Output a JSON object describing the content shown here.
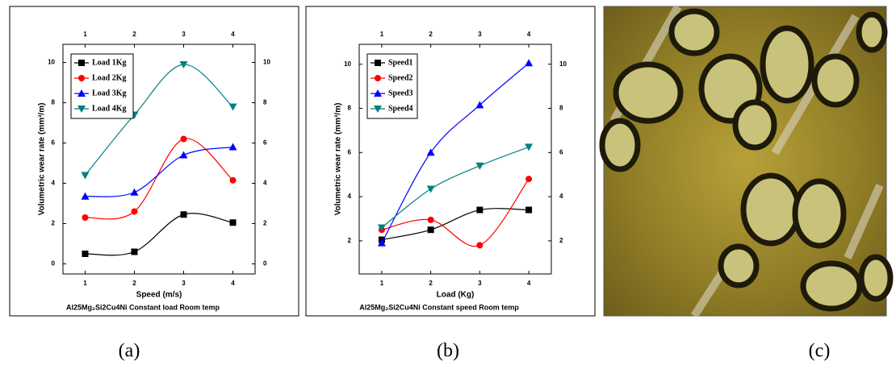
{
  "chart_data": [
    {
      "type": "line",
      "panel_label": "(a)",
      "title": "Al25Mg₂Si2Cu4Ni Constant load Room temp",
      "x_label": "Speed (m/s)",
      "y_label": "Volumetric wear rate (mm³/m)",
      "x": [
        1,
        2,
        3,
        4
      ],
      "xlim": [
        0.55,
        4.45
      ],
      "xticks": [
        1,
        2,
        3,
        4
      ],
      "ylim": [
        -0.5,
        10.9
      ],
      "yticks": [
        0,
        2,
        4,
        6,
        8,
        10
      ],
      "legend": "upper left",
      "smooth": true,
      "series": [
        {
          "name": "Load 1Kg",
          "color": "#000000",
          "marker": "square",
          "values": [
            0.5,
            0.6,
            2.45,
            2.05
          ]
        },
        {
          "name": "Load 2Kg",
          "color": "#ff0000",
          "marker": "circle",
          "values": [
            2.3,
            2.6,
            6.2,
            4.15
          ]
        },
        {
          "name": "Load 3Kg",
          "color": "#0000ff",
          "marker": "triangle-up",
          "values": [
            3.35,
            3.55,
            5.4,
            5.8
          ]
        },
        {
          "name": "Load 4Kg",
          "color": "#008080",
          "marker": "triangle-down",
          "values": [
            4.4,
            7.4,
            9.9,
            7.8
          ]
        }
      ]
    },
    {
      "type": "line",
      "panel_label": "(b)",
      "title": "Al25Mg₂Si2Cu4Ni Constant speed Room temp",
      "x_label": "Load (Kg)",
      "y_label": "Volumetric wear rate (mm³/m)",
      "x": [
        1,
        2,
        3,
        4
      ],
      "xlim": [
        0.54,
        4.46
      ],
      "xticks": [
        1,
        2,
        3,
        4
      ],
      "ylim": [
        0.5,
        10.9
      ],
      "yticks": [
        2,
        4,
        6,
        8,
        10
      ],
      "legend": "upper left",
      "smooth": true,
      "series": [
        {
          "name": "Speed1",
          "color": "#000000",
          "marker": "square",
          "values": [
            2.05,
            2.5,
            3.4,
            3.4
          ]
        },
        {
          "name": "Speed2",
          "color": "#ff0000",
          "marker": "circle",
          "values": [
            2.5,
            2.95,
            1.8,
            4.8
          ]
        },
        {
          "name": "Speed3",
          "color": "#0000ff",
          "marker": "triangle-up",
          "values": [
            1.9,
            6.0,
            8.15,
            10.05
          ]
        },
        {
          "name": "Speed4",
          "color": "#008080",
          "marker": "triangle-down",
          "values": [
            2.6,
            4.35,
            5.4,
            6.25
          ]
        }
      ]
    }
  ],
  "image_panel": {
    "label": "(c)"
  }
}
